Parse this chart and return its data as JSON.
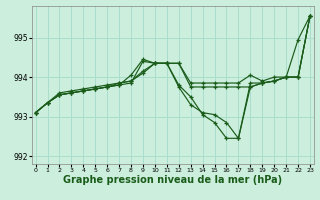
{
  "background_color": "#cceedd",
  "grid_color": "#aaddcc",
  "line_color": "#1a5c1a",
  "xlabel": "Graphe pression niveau de la mer (hPa)",
  "xlabel_fontsize": 7,
  "ylim": [
    991.8,
    995.8
  ],
  "xlim": [
    -0.3,
    23.3
  ],
  "yticks": [
    992,
    993,
    994,
    995
  ],
  "xticks": [
    0,
    1,
    2,
    3,
    4,
    5,
    6,
    7,
    8,
    9,
    10,
    11,
    12,
    13,
    14,
    15,
    16,
    17,
    18,
    19,
    20,
    21,
    22,
    23
  ],
  "s1_x": [
    0,
    1,
    2,
    3,
    4,
    5,
    6,
    7,
    8,
    9,
    10,
    11,
    12,
    13,
    14,
    15,
    16,
    17,
    18,
    19,
    20,
    21,
    22,
    23
  ],
  "s1_y": [
    993.1,
    993.35,
    993.55,
    993.6,
    993.65,
    993.7,
    993.75,
    993.8,
    993.85,
    994.4,
    994.35,
    994.35,
    993.75,
    993.3,
    993.1,
    993.05,
    992.85,
    992.45,
    993.75,
    993.85,
    993.9,
    994.0,
    994.95,
    995.55
  ],
  "s2_x": [
    0,
    1,
    2,
    3,
    4,
    5,
    6,
    7,
    8,
    9,
    10,
    11,
    12,
    13,
    14,
    15,
    16,
    17,
    18,
    19,
    20,
    21,
    22,
    23
  ],
  "s2_y": [
    993.1,
    993.35,
    993.55,
    993.6,
    993.65,
    993.7,
    993.75,
    993.8,
    994.05,
    994.45,
    994.35,
    994.35,
    994.35,
    993.75,
    993.75,
    993.75,
    993.75,
    993.75,
    993.75,
    993.85,
    993.9,
    994.0,
    994.0,
    995.55
  ],
  "s3_x": [
    0,
    1,
    2,
    3,
    4,
    5,
    6,
    7,
    8,
    9,
    10,
    11,
    12,
    13,
    14,
    15,
    16,
    17,
    18,
    19,
    20,
    21,
    22,
    23
  ],
  "s3_y": [
    993.1,
    993.35,
    993.55,
    993.6,
    993.65,
    993.7,
    993.75,
    993.85,
    993.9,
    994.15,
    994.35,
    994.35,
    993.8,
    993.5,
    993.05,
    992.85,
    992.45,
    992.45,
    993.85,
    993.85,
    993.9,
    994.0,
    994.0,
    995.55
  ],
  "s4_x": [
    0,
    1,
    2,
    3,
    4,
    5,
    6,
    7,
    8,
    9,
    10,
    11,
    12,
    13,
    14,
    15,
    16,
    17,
    18,
    19,
    20,
    21,
    22,
    23
  ],
  "s4_y": [
    993.1,
    993.35,
    993.6,
    993.65,
    993.7,
    993.75,
    993.8,
    993.85,
    993.9,
    994.1,
    994.35,
    994.35,
    994.35,
    993.85,
    993.85,
    993.85,
    993.85,
    993.85,
    994.05,
    993.9,
    994.0,
    994.0,
    994.0,
    995.55
  ]
}
